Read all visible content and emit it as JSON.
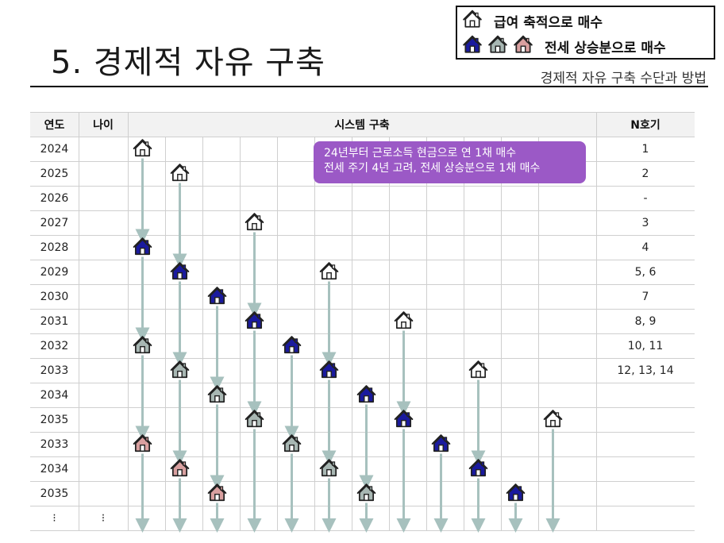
{
  "title": "5. 경제적 자유 구축",
  "subtitle": "경제적 자유 구축 수단과 방법",
  "legend": {
    "row1_label": "급여 축적으로 매수",
    "row2_label": "전세 상승분으로 매수"
  },
  "colors": {
    "salary_house": "#ffffff",
    "stage2_house": "#1a1a9e",
    "stage3_house": "#a8b7b3",
    "stage4_house": "#d9a0a0",
    "arrow": "#a7c1be",
    "callout_bg": "#9b59c6"
  },
  "table": {
    "headers": {
      "year": "연도",
      "age": "나이",
      "system": "시스템 구축",
      "n": "N호기"
    },
    "rows": [
      {
        "year": "2024",
        "age": "",
        "n": "1"
      },
      {
        "year": "2025",
        "age": "",
        "n": "2"
      },
      {
        "year": "2026",
        "age": "",
        "n": "-"
      },
      {
        "year": "2027",
        "age": "",
        "n": "3"
      },
      {
        "year": "2028",
        "age": "",
        "n": "4"
      },
      {
        "year": "2029",
        "age": "",
        "n": "5, 6"
      },
      {
        "year": "2030",
        "age": "",
        "n": "7"
      },
      {
        "year": "2031",
        "age": "",
        "n": "8, 9"
      },
      {
        "year": "2032",
        "age": "",
        "n": "10, 11"
      },
      {
        "year": "2033",
        "age": "",
        "n": "12, 13, 14"
      },
      {
        "year": "2034",
        "age": "",
        "n": ""
      },
      {
        "year": "2035",
        "age": "",
        "n": ""
      },
      {
        "year": "2033",
        "age": "",
        "n": ""
      },
      {
        "year": "2034",
        "age": "",
        "n": ""
      },
      {
        "year": "2035",
        "age": "",
        "n": ""
      },
      {
        "year": "⁝",
        "age": "⁝",
        "n": ""
      }
    ]
  },
  "callout": {
    "line1": "24년부터 근로소득 현금으로 연 1채 매수",
    "line2": "전세 주기 4년 고려, 전세 상승분으로 1채 매수"
  },
  "chains": [
    {
      "col": 0,
      "houses": [
        {
          "row": 0,
          "stage": "salary"
        },
        {
          "row": 4,
          "stage": "blue"
        },
        {
          "row": 8,
          "stage": "gray"
        },
        {
          "row": 12,
          "stage": "pink"
        }
      ]
    },
    {
      "col": 1,
      "houses": [
        {
          "row": 1,
          "stage": "salary"
        },
        {
          "row": 5,
          "stage": "blue"
        },
        {
          "row": 9,
          "stage": "gray"
        },
        {
          "row": 13,
          "stage": "pink"
        }
      ]
    },
    {
      "col": 2,
      "houses": [
        {
          "row": 6,
          "stage": "blue"
        },
        {
          "row": 10,
          "stage": "gray"
        },
        {
          "row": 14,
          "stage": "pink"
        }
      ]
    },
    {
      "col": 3,
      "houses": [
        {
          "row": 3,
          "stage": "salary"
        },
        {
          "row": 7,
          "stage": "blue"
        },
        {
          "row": 11,
          "stage": "gray"
        }
      ]
    },
    {
      "col": 4,
      "houses": [
        {
          "row": 8,
          "stage": "blue"
        },
        {
          "row": 12,
          "stage": "gray"
        }
      ]
    },
    {
      "col": 5,
      "houses": [
        {
          "row": 5,
          "stage": "salary"
        },
        {
          "row": 9,
          "stage": "blue"
        },
        {
          "row": 13,
          "stage": "gray"
        }
      ]
    },
    {
      "col": 6,
      "houses": [
        {
          "row": 10,
          "stage": "blue"
        },
        {
          "row": 14,
          "stage": "gray"
        }
      ]
    },
    {
      "col": 7,
      "houses": [
        {
          "row": 7,
          "stage": "salary"
        },
        {
          "row": 11,
          "stage": "blue"
        }
      ]
    },
    {
      "col": 8,
      "houses": [
        {
          "row": 12,
          "stage": "blue"
        }
      ]
    },
    {
      "col": 9,
      "houses": [
        {
          "row": 9,
          "stage": "salary"
        },
        {
          "row": 13,
          "stage": "blue"
        }
      ]
    },
    {
      "col": 10,
      "houses": [
        {
          "row": 14,
          "stage": "blue"
        }
      ]
    },
    {
      "col": 11,
      "houses": [
        {
          "row": 11,
          "stage": "salary"
        }
      ]
    }
  ]
}
